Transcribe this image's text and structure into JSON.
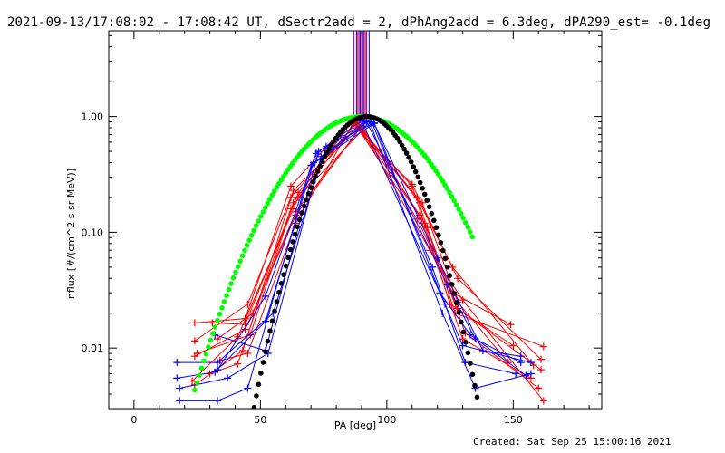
{
  "header": {
    "title": "2021-09-13/17:08:02 - 17:08:42 UT, dSectr2add = 2, dPhAng2add = 6.3deg, dPA290_est= -0.1deg"
  },
  "footer": {
    "created": "Created: Sat Sep 25 15:00:16 2021"
  },
  "chart_data": {
    "type": "scatter",
    "title": "2021-09-13/17:08:02 - 17:08:42 UT, dSectr2add = 2, dPhAng2add = 6.3deg, dPA290_est= -0.1deg",
    "xlabel": "PA [deg]",
    "ylabel": "nflux [#/(cm^2 s sr MeV)]",
    "xlim": [
      -10,
      185
    ],
    "ylim": [
      0.003,
      5.5
    ],
    "yscale": "log",
    "grid": false,
    "x_ticks": [
      0,
      50,
      100,
      150
    ],
    "x_tick_labels": [
      "0",
      "50",
      "100",
      "150"
    ],
    "y_ticks": [
      0.01,
      0.1,
      1.0
    ],
    "y_tick_labels": [
      "0.01",
      "0.10",
      "1.00"
    ],
    "colors": {
      "red": "#ff0000",
      "blue": "#0000ff",
      "green": "#00ff00",
      "black": "#000000",
      "purple": "#8800cc"
    },
    "markers": {
      "x": [
        87,
        88,
        88.5,
        89,
        89.5,
        90,
        90.5,
        91,
        91.5,
        92,
        93
      ],
      "colors": [
        "purple",
        "blue",
        "red",
        "purple",
        "blue",
        "red",
        "purple",
        "blue",
        "red",
        "purple",
        "blue"
      ]
    },
    "fits": [
      {
        "color": "green",
        "center": 90,
        "width": 28.3,
        "x_range": [
          24,
          134
        ]
      },
      {
        "color": "black",
        "center": 92,
        "width": 18.5,
        "x_range": [
          43,
          143
        ]
      }
    ],
    "red_series": [
      {
        "points": [
          [
            24,
            0.0165
          ],
          [
            44,
            0.018
          ],
          [
            62,
            0.25
          ],
          [
            86,
            0.95
          ],
          [
            110,
            0.25
          ],
          [
            125,
            0.024
          ],
          [
            150,
            0.0105
          ]
        ]
      },
      {
        "points": [
          [
            24,
            0.0115
          ],
          [
            45,
            0.024
          ],
          [
            62,
            0.2
          ],
          [
            88,
            0.88
          ],
          [
            112,
            0.2
          ],
          [
            127,
            0.02
          ],
          [
            162,
            0.0103
          ]
        ]
      },
      {
        "points": [
          [
            25,
            0.009
          ],
          [
            46,
            0.013
          ],
          [
            63,
            0.18
          ],
          [
            86,
            0.9
          ],
          [
            114,
            0.18
          ],
          [
            128,
            0.025
          ],
          [
            148,
            0.0075
          ]
        ]
      },
      {
        "points": [
          [
            24,
            0.0085
          ],
          [
            44,
            0.0145
          ],
          [
            64,
            0.14
          ],
          [
            90,
            0.83
          ],
          [
            113,
            0.14
          ],
          [
            130,
            0.012
          ],
          [
            157,
            0.0055
          ]
        ]
      },
      {
        "points": [
          [
            23,
            0.0052
          ],
          [
            41,
            0.0125
          ],
          [
            65,
            0.2
          ],
          [
            90,
            0.75
          ],
          [
            116,
            0.11
          ],
          [
            131,
            0.0135
          ],
          [
            160,
            0.0045
          ]
        ]
      },
      {
        "points": [
          [
            24,
            0.0048
          ],
          [
            43,
            0.0095
          ],
          [
            63,
            0.23
          ],
          [
            88,
            0.8
          ],
          [
            110,
            0.26
          ],
          [
            128,
            0.04
          ],
          [
            161,
            0.008
          ]
        ]
      },
      {
        "points": [
          [
            34,
            0.0078
          ],
          [
            45,
            0.009
          ],
          [
            64,
            0.12
          ],
          [
            87,
            0.9
          ],
          [
            112,
            0.13
          ],
          [
            126,
            0.03
          ],
          [
            149,
            0.016
          ]
        ]
      },
      {
        "points": [
          [
            30,
            0.006
          ],
          [
            41,
            0.0073
          ],
          [
            62,
            0.16
          ],
          [
            88,
            0.92
          ],
          [
            117,
            0.07
          ],
          [
            130,
            0.026
          ],
          [
            162,
            0.0035
          ]
        ]
      },
      {
        "points": [
          [
            31,
            0.0165
          ],
          [
            44,
            0.016
          ],
          [
            65,
            0.22
          ],
          [
            89,
            0.85
          ],
          [
            113,
            0.18
          ],
          [
            126,
            0.05
          ],
          [
            158,
            0.0071
          ]
        ]
      },
      {
        "points": [
          [
            33,
            0.012
          ],
          [
            47,
            0.02
          ],
          [
            64,
            0.15
          ],
          [
            90,
            0.82
          ],
          [
            115,
            0.12
          ],
          [
            128,
            0.022
          ],
          [
            161,
            0.0065
          ]
        ]
      }
    ],
    "blue_series": [
      {
        "points": [
          [
            17,
            0.0075
          ],
          [
            33,
            0.0075
          ],
          [
            55,
            0.02
          ],
          [
            76,
            0.55
          ],
          [
            95,
            0.88
          ],
          [
            121,
            0.03
          ],
          [
            133,
            0.013
          ],
          [
            155,
            0.0058
          ]
        ]
      },
      {
        "points": [
          [
            18,
            0.0045
          ],
          [
            37,
            0.0055
          ],
          [
            53,
            0.009
          ],
          [
            74,
            0.45
          ],
          [
            93,
            0.92
          ],
          [
            122,
            0.02
          ],
          [
            135,
            0.0045
          ],
          [
            157,
            0.006
          ]
        ]
      },
      {
        "points": [
          [
            17,
            0.0055
          ],
          [
            32,
            0.0062
          ],
          [
            52,
            0.017
          ],
          [
            71,
            0.4
          ],
          [
            94,
            0.9
          ],
          [
            118,
            0.05
          ],
          [
            131,
            0.0075
          ],
          [
            151,
            0.006
          ]
        ]
      },
      {
        "points": [
          [
            18,
            0.0035
          ],
          [
            33,
            0.0035
          ],
          [
            45,
            0.0045
          ],
          [
            70,
            0.38
          ],
          [
            95,
            0.87
          ],
          [
            120,
            0.06
          ],
          [
            138,
            0.0095
          ],
          [
            153,
            0.0085
          ]
        ]
      },
      {
        "points": [
          [
            32,
            0.013
          ],
          [
            52,
            0.0095
          ],
          [
            73,
            0.5
          ],
          [
            92,
            0.9
          ],
          [
            124,
            0.035
          ],
          [
            135,
            0.012
          ],
          [
            153,
            0.0075
          ]
        ]
      },
      {
        "points": [
          [
            33,
            0.0065
          ],
          [
            52,
            0.028
          ],
          [
            72,
            0.48
          ],
          [
            90,
            0.92
          ],
          [
            123,
            0.024
          ],
          [
            130,
            0.0105
          ],
          [
            157,
            0.0075
          ]
        ]
      }
    ]
  }
}
